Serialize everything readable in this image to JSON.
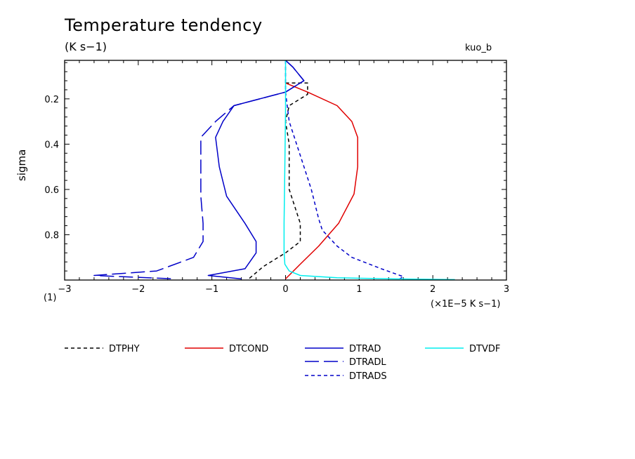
{
  "chart_data": {
    "type": "line",
    "title": "Temperature tendency",
    "subtitle": "(K s−1)",
    "tag": "kuo_b",
    "ylabel": "sigma",
    "xunit": "(×1E−5 K s−1)",
    "scale_label": "(1)",
    "xlim": [
      -3,
      3
    ],
    "ylim": [
      0.03,
      1.0
    ],
    "y_inverted": true,
    "xticks": [
      -3,
      -2,
      -1,
      0,
      1,
      2,
      3
    ],
    "xtick_labels": [
      "−3",
      "−2",
      "−1",
      "0",
      "1",
      "2",
      "3"
    ],
    "yticks": [
      0.2,
      0.4,
      0.6,
      0.8
    ],
    "ytick_labels": [
      "0.2",
      "0.4",
      "0.6",
      "0.8"
    ],
    "series": [
      {
        "name": "DTPHY",
        "color": "#000000",
        "dash": "short",
        "x": [
          0.0,
          0.3,
          0.3,
          0.05,
          0.0,
          0.05,
          0.05,
          0.2,
          0.2,
          0.0,
          -0.3,
          -0.5
        ],
        "y": [
          0.13,
          0.13,
          0.18,
          0.23,
          0.3,
          0.4,
          0.6,
          0.75,
          0.83,
          0.88,
          0.94,
          0.995
        ]
      },
      {
        "name": "DTCOND",
        "color": "#e00000",
        "dash": "solid",
        "x": [
          0.0,
          0.3,
          0.7,
          0.9,
          0.98,
          0.98,
          0.93,
          0.72,
          0.45,
          0.2,
          0.0
        ],
        "y": [
          0.13,
          0.17,
          0.23,
          0.3,
          0.37,
          0.5,
          0.62,
          0.75,
          0.85,
          0.93,
          0.995
        ]
      },
      {
        "name": "DTRAD",
        "color": "#0000c8",
        "dash": "solid",
        "x": [
          0.0,
          0.1,
          0.25,
          0.0,
          -0.7,
          -0.85,
          -0.95,
          -0.9,
          -0.8,
          -0.55,
          -0.4,
          -0.4,
          -0.55,
          -1.05,
          -0.6
        ],
        "y": [
          0.03,
          0.06,
          0.12,
          0.17,
          0.23,
          0.3,
          0.37,
          0.5,
          0.63,
          0.75,
          0.83,
          0.88,
          0.95,
          0.98,
          0.995
        ]
      },
      {
        "name": "DTRADL",
        "color": "#0000c8",
        "dash": "long",
        "x": [
          0.0,
          0.1,
          0.25,
          0.0,
          -0.7,
          -0.95,
          -1.15,
          -1.15,
          -1.15,
          -1.12,
          -1.12,
          -1.25,
          -1.75,
          -2.6,
          -1.5
        ],
        "y": [
          0.03,
          0.06,
          0.12,
          0.17,
          0.23,
          0.3,
          0.37,
          0.5,
          0.63,
          0.75,
          0.83,
          0.9,
          0.96,
          0.98,
          0.995
        ]
      },
      {
        "name": "DTRADS",
        "color": "#0000c8",
        "dash": "short",
        "x": [
          0.0,
          0.0,
          0.05,
          0.2,
          0.35,
          0.45,
          0.5,
          0.7,
          0.9,
          1.3,
          1.6,
          1.55
        ],
        "y": [
          0.03,
          0.17,
          0.3,
          0.45,
          0.6,
          0.73,
          0.78,
          0.85,
          0.9,
          0.95,
          0.985,
          0.995
        ]
      },
      {
        "name": "DTVDF",
        "color": "#00eeee",
        "dash": "solid",
        "x": [
          0.0,
          0.0,
          -0.01,
          -0.02,
          -0.02,
          -0.01,
          0.05,
          0.2,
          0.7,
          1.5,
          2.3
        ],
        "y": [
          0.03,
          0.25,
          0.5,
          0.75,
          0.87,
          0.93,
          0.96,
          0.98,
          0.99,
          0.995,
          0.998
        ]
      }
    ]
  }
}
